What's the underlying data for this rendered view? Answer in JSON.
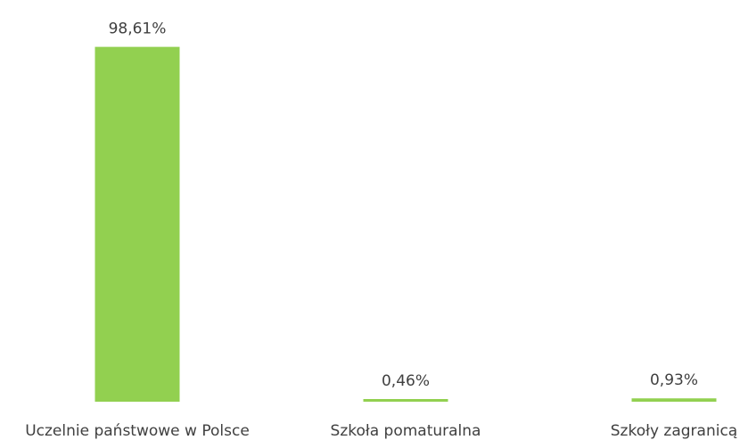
{
  "chart_data": {
    "type": "bar",
    "categories": [
      "Uczelnie państwowe w Polsce",
      "Szkoła pomaturalna",
      "Szkoły zagranicą"
    ],
    "values": [
      98.61,
      0.46,
      0.93
    ],
    "data_labels": [
      "98,61%",
      "0,46%",
      "0,93%"
    ],
    "title": "",
    "xlabel": "",
    "ylabel": "",
    "ylim": [
      0,
      100
    ],
    "grid": false,
    "legend": "none",
    "bar_color": "#92d050"
  }
}
